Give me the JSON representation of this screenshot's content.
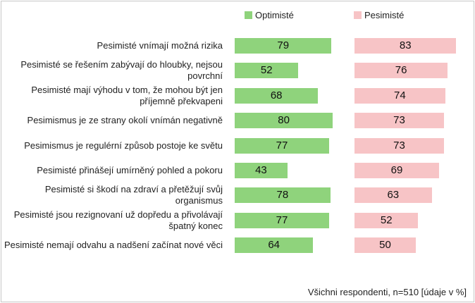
{
  "chart_data": {
    "type": "bar",
    "orientation": "horizontal",
    "categories": [
      "Pesimisté vnímají možná rizika",
      "Pesimisté se řešením zabývají do hloubky, nejsou povrchní",
      "Pesimisté mají výhodu v tom, že mohou být jen příjemně překvapeni",
      "Pesimismus je ze strany okolí vnímán negativně",
      "Pesimismus je regulérní způsob postoje ke světu",
      "Pesimisté přinášejí umírněný pohled a pokoru",
      "Pesimisté si škodí na zdraví a přetěžují svůj organismus",
      "Pesimisté jsou rezignovaní už dopředu a přivolávají špatný konec",
      "Pesimisté nemají odvahu a nadšení začínat nové věci"
    ],
    "series": [
      {
        "name": "Optimisté",
        "values": [
          79,
          52,
          68,
          80,
          77,
          43,
          78,
          77,
          64
        ],
        "color": "#8fd37c"
      },
      {
        "name": "Pesimisté",
        "values": [
          83,
          76,
          74,
          73,
          73,
          69,
          63,
          52,
          50
        ],
        "color": "#f7c4c6"
      }
    ],
    "legend_position": "top",
    "grid": false,
    "ylim": [
      0,
      100
    ],
    "footnote": "Všichni respondenti, n=510 [údaje v %]"
  }
}
